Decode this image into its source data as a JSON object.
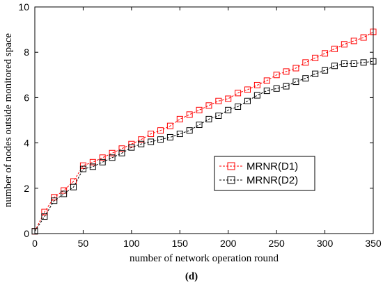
{
  "chart_data": {
    "type": "line",
    "xlabel": "number of network operation round",
    "ylabel": "number of nodes outside monitored space",
    "caption_prefix": "(",
    "caption_letter": "d",
    "caption_suffix": ")",
    "xlim": [
      0,
      350
    ],
    "ylim": [
      0,
      10
    ],
    "xticks": [
      0,
      50,
      100,
      150,
      200,
      250,
      300,
      350
    ],
    "yticks": [
      0,
      2,
      4,
      6,
      8,
      10
    ],
    "grid": false,
    "legend_position": "right-middle",
    "x": [
      0,
      10,
      20,
      30,
      40,
      50,
      60,
      70,
      80,
      90,
      100,
      110,
      120,
      130,
      140,
      150,
      160,
      170,
      180,
      190,
      200,
      210,
      220,
      230,
      240,
      250,
      260,
      270,
      280,
      290,
      300,
      310,
      320,
      330,
      340,
      350
    ],
    "series": [
      {
        "name": "MRNR(D1)",
        "color": "#ff0000",
        "marker": "square",
        "values": [
          0.1,
          0.95,
          1.6,
          1.9,
          2.3,
          3.0,
          3.15,
          3.35,
          3.55,
          3.75,
          3.95,
          4.15,
          4.4,
          4.55,
          4.75,
          5.05,
          5.25,
          5.45,
          5.65,
          5.85,
          5.95,
          6.2,
          6.35,
          6.55,
          6.75,
          7.0,
          7.15,
          7.3,
          7.55,
          7.75,
          7.95,
          8.15,
          8.35,
          8.5,
          8.65,
          8.9
        ]
      },
      {
        "name": "MRNR(D2)",
        "color": "#000000",
        "marker": "square",
        "values": [
          0.1,
          0.75,
          1.45,
          1.75,
          2.05,
          2.85,
          2.95,
          3.15,
          3.35,
          3.55,
          3.8,
          3.95,
          4.05,
          4.15,
          4.25,
          4.4,
          4.55,
          4.8,
          5.05,
          5.2,
          5.45,
          5.6,
          5.85,
          6.1,
          6.3,
          6.4,
          6.5,
          6.7,
          6.85,
          7.05,
          7.2,
          7.4,
          7.5,
          7.5,
          7.55,
          7.6
        ]
      }
    ]
  }
}
